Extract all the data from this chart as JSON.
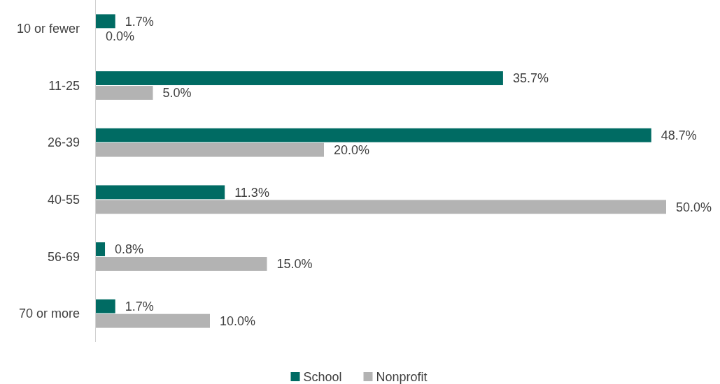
{
  "chart_data": {
    "type": "bar",
    "orientation": "horizontal",
    "categories": [
      "10 or fewer",
      "11-25",
      "26-39",
      "40-55",
      "56-69",
      "70 or more"
    ],
    "series": [
      {
        "name": "School",
        "color": "#006b63",
        "values": [
          1.7,
          35.7,
          48.7,
          11.3,
          0.8,
          1.7
        ],
        "value_labels": [
          "1.7%",
          "35.7%",
          "48.7%",
          "11.3%",
          "0.8%",
          "1.7%"
        ]
      },
      {
        "name": "Nonprofit",
        "color": "#b3b3b3",
        "values": [
          0.0,
          5.0,
          20.0,
          50.0,
          15.0,
          10.0
        ],
        "value_labels": [
          "0.0%",
          "5.0%",
          "20.0%",
          "50.0%",
          "15.0%",
          "10.0%"
        ]
      }
    ],
    "legend": "bottom"
  }
}
